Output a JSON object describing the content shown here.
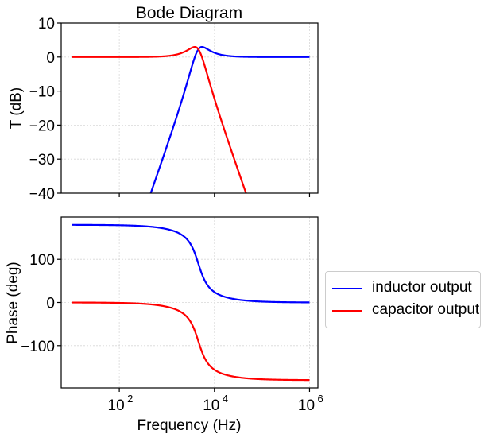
{
  "chart_data": [
    {
      "type": "line",
      "title": "Bode Diagram",
      "xlabel": "",
      "ylabel": "T (dB)",
      "xscale": "log",
      "xlim": [
        6,
        1500000
      ],
      "ylim": [
        -40,
        10
      ],
      "yticks": [
        10,
        0,
        -10,
        -20,
        -30,
        -40
      ],
      "ytick_labels": [
        "10",
        "0",
        "−10",
        "−20",
        "−30",
        "−40"
      ],
      "grid": true,
      "series": [
        {
          "name": "inductor output",
          "color": "#0000ff",
          "x": [
            10,
            100,
            460,
            1000,
            2000,
            3000,
            4000,
            4600,
            6000,
            8000,
            10000,
            100000,
            1000000
          ],
          "values": [
            -120,
            -80,
            -40,
            -26.5,
            -14.3,
            -6.9,
            -1.2,
            1.3,
            2.0,
            1.2,
            0.8,
            0.0,
            0.0
          ]
        },
        {
          "name": "capacitor output",
          "color": "#ff0000",
          "x": [
            10,
            100,
            1000,
            2000,
            3000,
            3700,
            4600,
            6000,
            10000,
            20000,
            46000,
            100000,
            1000000
          ],
          "values": [
            0.0,
            0.0,
            0.3,
            0.8,
            1.6,
            2.0,
            1.3,
            -3.5,
            -13.3,
            -25.5,
            -40,
            -53,
            -93
          ]
        }
      ]
    },
    {
      "type": "line",
      "title": "",
      "xlabel": "Frequency (Hz)",
      "ylabel": "Phase (deg)",
      "xscale": "log",
      "xlim": [
        6,
        1500000
      ],
      "ylim": [
        -198,
        198
      ],
      "xticks": [
        100,
        10000,
        1000000
      ],
      "xtick_labels": [
        "10^2",
        "10^4",
        "10^6"
      ],
      "yticks": [
        100,
        0,
        -100
      ],
      "ytick_labels": [
        "100",
        "0",
        "−100"
      ],
      "grid": true,
      "series": [
        {
          "name": "inductor output",
          "color": "#0000ff",
          "x": [
            10,
            100,
            1000,
            2000,
            3000,
            4600,
            6000,
            10000,
            100000,
            1000000
          ],
          "values": [
            179.8,
            178.6,
            170,
            157,
            140,
            90,
            55,
            25,
            2.3,
            0.2
          ]
        },
        {
          "name": "capacitor output",
          "color": "#ff0000",
          "x": [
            10,
            100,
            1000,
            2000,
            3000,
            4600,
            6000,
            10000,
            100000,
            1000000
          ],
          "values": [
            -0.2,
            -1.4,
            -10,
            -23,
            -40,
            -90,
            -125,
            -155,
            -177.7,
            -179.8
          ]
        }
      ]
    }
  ],
  "model": {
    "f0": 4600,
    "Q": 1.3,
    "fmin": 10,
    "fmax": 1000000
  },
  "top_axis": {
    "title": "Bode Diagram",
    "ylabel": "T (dB)"
  },
  "bottom_axis": {
    "xlabel": "Frequency (Hz)",
    "ylabel": "Phase (deg)"
  },
  "legend": {
    "items": [
      {
        "label": "inductor output",
        "color": "#0000ff"
      },
      {
        "label": "capacitor output",
        "color": "#ff0000"
      }
    ]
  }
}
